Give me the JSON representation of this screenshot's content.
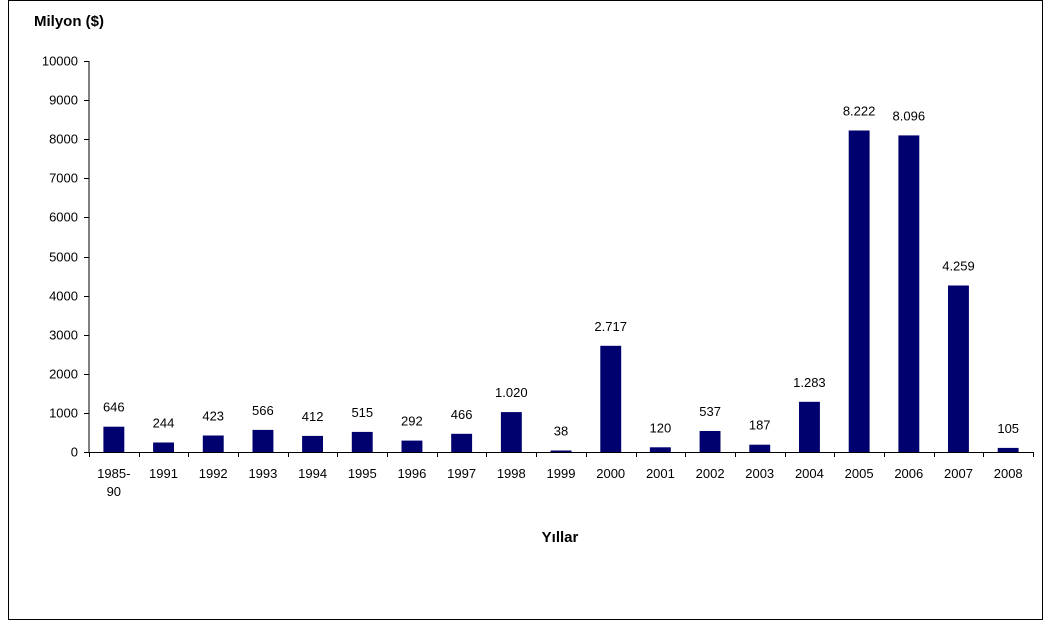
{
  "chart_data": {
    "type": "bar",
    "title": "",
    "ylabel": "Milyon ($)",
    "xlabel": "Yıllar",
    "ylim": [
      0,
      10000
    ],
    "yticks": [
      0,
      1000,
      2000,
      3000,
      4000,
      5000,
      6000,
      7000,
      8000,
      9000,
      10000
    ],
    "categories": [
      "1985-90",
      "1991",
      "1992",
      "1993",
      "1994",
      "1995",
      "1996",
      "1997",
      "1998",
      "1999",
      "2000",
      "2001",
      "2002",
      "2003",
      "2004",
      "2005",
      "2006",
      "2007",
      "2008"
    ],
    "category_lines": [
      [
        "1985-",
        "90"
      ],
      [
        "1991"
      ],
      [
        "1992"
      ],
      [
        "1993"
      ],
      [
        "1994"
      ],
      [
        "1995"
      ],
      [
        "1996"
      ],
      [
        "1997"
      ],
      [
        "1998"
      ],
      [
        "1999"
      ],
      [
        "2000"
      ],
      [
        "2001"
      ],
      [
        "2002"
      ],
      [
        "2003"
      ],
      [
        "2004"
      ],
      [
        "2005"
      ],
      [
        "2006"
      ],
      [
        "2007"
      ],
      [
        "2008"
      ]
    ],
    "values": [
      646,
      244,
      423,
      566,
      412,
      515,
      292,
      466,
      1020,
      38,
      2717,
      120,
      537,
      187,
      1283,
      8222,
      8096,
      4259,
      105
    ],
    "data_labels": [
      "646",
      "244",
      "423",
      "566",
      "412",
      "515",
      "292",
      "466",
      "1.020",
      "38",
      "2.717",
      "120",
      "537",
      "187",
      "1.283",
      "8.222",
      "8.096",
      "4.259",
      "105"
    ],
    "grid": false,
    "legend": "none",
    "bar_color": "#00006E",
    "axis_color": "#000000"
  }
}
